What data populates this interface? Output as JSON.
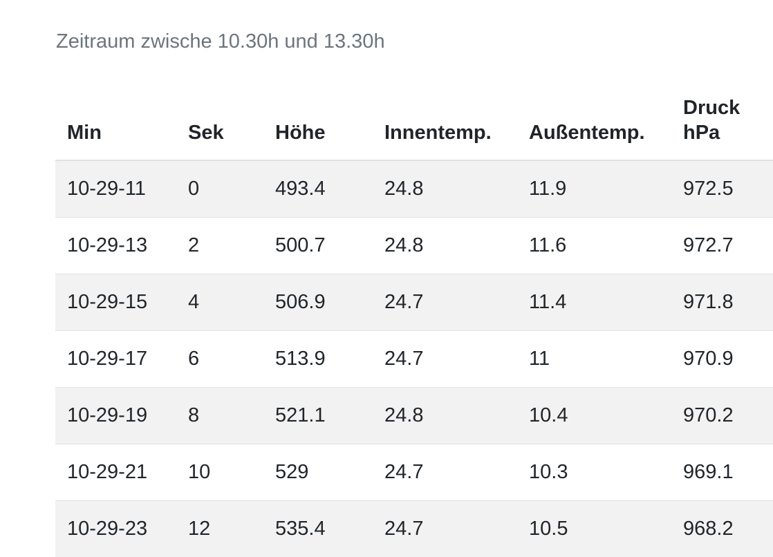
{
  "caption": "Zeitraum zwische 10.30h und 13.30h",
  "table": {
    "headers": [
      "Min",
      "Sek",
      "Höhe",
      "Innentemp.",
      "Außentemp.",
      "Druck hPa"
    ],
    "rows": [
      [
        "10-29-11",
        "0",
        "493.4",
        "24.8",
        "11.9",
        "972.5"
      ],
      [
        "10-29-13",
        "2",
        "500.7",
        "24.8",
        "11.6",
        "972.7"
      ],
      [
        "10-29-15",
        "4",
        "506.9",
        "24.7",
        "11.4",
        "971.8"
      ],
      [
        "10-29-17",
        "6",
        "513.9",
        "24.7",
        "11",
        "970.9"
      ],
      [
        "10-29-19",
        "8",
        "521.1",
        "24.8",
        "10.4",
        "970.2"
      ],
      [
        "10-29-21",
        "10",
        "529",
        "24.7",
        "10.3",
        "969.1"
      ],
      [
        "10-29-23",
        "12",
        "535.4",
        "24.7",
        "10.5",
        "968.2"
      ]
    ]
  }
}
